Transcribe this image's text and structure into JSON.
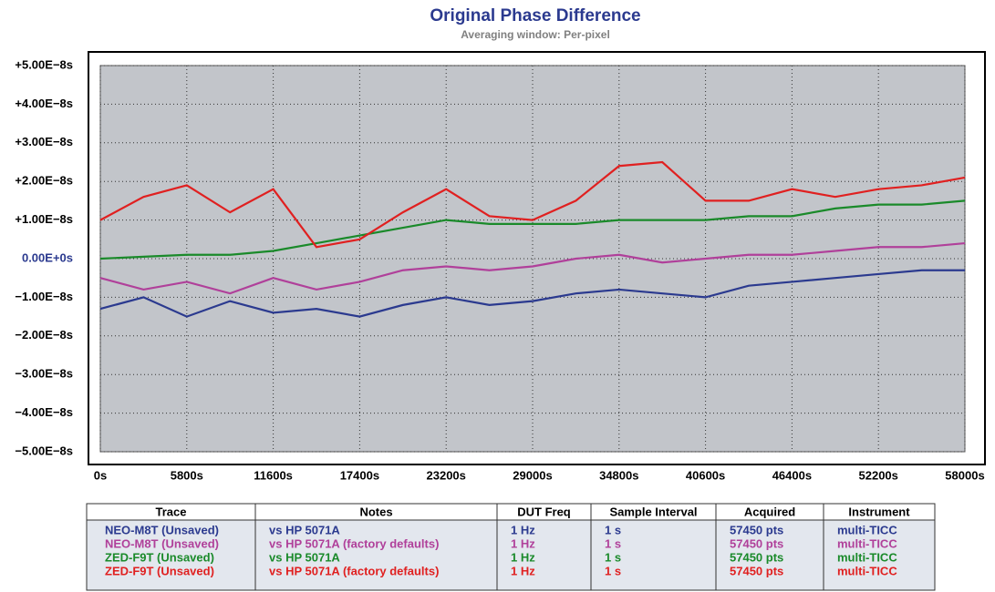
{
  "chart_data": {
    "type": "line",
    "title": "Original Phase Difference",
    "subtitle": "Averaging window: Per-pixel",
    "x": [
      0,
      2900,
      5800,
      8700,
      11600,
      14500,
      17400,
      20300,
      23200,
      26100,
      29000,
      31900,
      34800,
      37700,
      40600,
      43500,
      46400,
      49300,
      52200,
      55100,
      58000
    ],
    "series": [
      {
        "color": "#2b3a8f",
        "values": [
          -1.3e-08,
          -1e-08,
          -1.5e-08,
          -1.1e-08,
          -1.4e-08,
          -1.3e-08,
          -1.5e-08,
          -1.2e-08,
          -1e-08,
          -1.2e-08,
          -1.1e-08,
          -9e-09,
          -8e-09,
          -9e-09,
          -1e-08,
          -7e-09,
          -6e-09,
          -5e-09,
          -4e-09,
          -3e-09,
          -3e-09
        ]
      },
      {
        "color": "#b0409a",
        "values": [
          -5e-09,
          -8e-09,
          -6e-09,
          -9e-09,
          -5e-09,
          -8e-09,
          -6e-09,
          -3e-09,
          -2e-09,
          -3e-09,
          -2e-09,
          0.0,
          1e-09,
          -1e-09,
          0.0,
          1e-09,
          1e-09,
          2e-09,
          3e-09,
          3e-09,
          4e-09
        ]
      },
      {
        "color": "#1a8a2a",
        "values": [
          0.0,
          5e-10,
          1e-09,
          1e-09,
          2e-09,
          4e-09,
          6e-09,
          8e-09,
          1e-08,
          9e-09,
          9e-09,
          9e-09,
          1e-08,
          1e-08,
          1e-08,
          1.1e-08,
          1.1e-08,
          1.3e-08,
          1.4e-08,
          1.4e-08,
          1.5e-08
        ]
      },
      {
        "color": "#e02020",
        "values": [
          1e-08,
          1.6e-08,
          1.9e-08,
          1.2e-08,
          1.8e-08,
          3e-09,
          5e-09,
          1.2e-08,
          1.8e-08,
          1.1e-08,
          1e-08,
          1.5e-08,
          2.4e-08,
          2.5e-08,
          1.5e-08,
          1.5e-08,
          1.8e-08,
          1.6e-08,
          1.8e-08,
          1.9e-08,
          2.1e-08
        ]
      }
    ],
    "xlim": [
      0,
      58000
    ],
    "xticks": [
      {
        "value": 0,
        "label": "0s"
      },
      {
        "value": 5800,
        "label": "5800s"
      },
      {
        "value": 11600,
        "label": "11600s"
      },
      {
        "value": 17400,
        "label": "17400s"
      },
      {
        "value": 23200,
        "label": "23200s"
      },
      {
        "value": 29000,
        "label": "29000s"
      },
      {
        "value": 34800,
        "label": "34800s"
      },
      {
        "value": 40600,
        "label": "40600s"
      },
      {
        "value": 46400,
        "label": "46400s"
      },
      {
        "value": 52200,
        "label": "52200s"
      },
      {
        "value": 58000,
        "label": "58000s"
      }
    ],
    "ylim": [
      -5e-08,
      5e-08
    ],
    "yticks": [
      {
        "value": 5e-08,
        "label": "+5.00E−8s"
      },
      {
        "value": 4e-08,
        "label": "+4.00E−8s"
      },
      {
        "value": 3e-08,
        "label": "+3.00E−8s"
      },
      {
        "value": 2e-08,
        "label": "+2.00E−8s"
      },
      {
        "value": 1e-08,
        "label": "+1.00E−8s"
      },
      {
        "value": 0,
        "label": "0.00E+0s"
      },
      {
        "value": -1e-08,
        "label": "−1.00E−8s"
      },
      {
        "value": -2e-08,
        "label": "−2.00E−8s"
      },
      {
        "value": -3e-08,
        "label": "−3.00E−8s"
      },
      {
        "value": -4e-08,
        "label": "−4.00E−8s"
      },
      {
        "value": -5e-08,
        "label": "−5.00E−8s"
      }
    ],
    "grid": true
  },
  "table": {
    "header": [
      "Trace",
      "Notes",
      "DUT Freq",
      "Sample Interval",
      "Acquired",
      "Instrument"
    ],
    "rows": [
      [
        "NEO-M8T (Unsaved)",
        "vs HP 5071A",
        "1 Hz",
        "1 s",
        "57450 pts",
        "multi-TICC"
      ],
      [
        "NEO-M8T (Unsaved)",
        "vs HP 5071A (factory defaults)",
        "1 Hz",
        "1 s",
        "57450 pts",
        "multi-TICC"
      ],
      [
        "ZED-F9T (Unsaved)",
        "vs HP 5071A",
        "1 Hz",
        "1 s",
        "57450 pts",
        "multi-TICC"
      ],
      [
        "ZED-F9T (Unsaved)",
        "vs HP 5071A (factory defaults)",
        "1 Hz",
        "1 s",
        "57450 pts",
        "multi-TICC"
      ]
    ]
  }
}
